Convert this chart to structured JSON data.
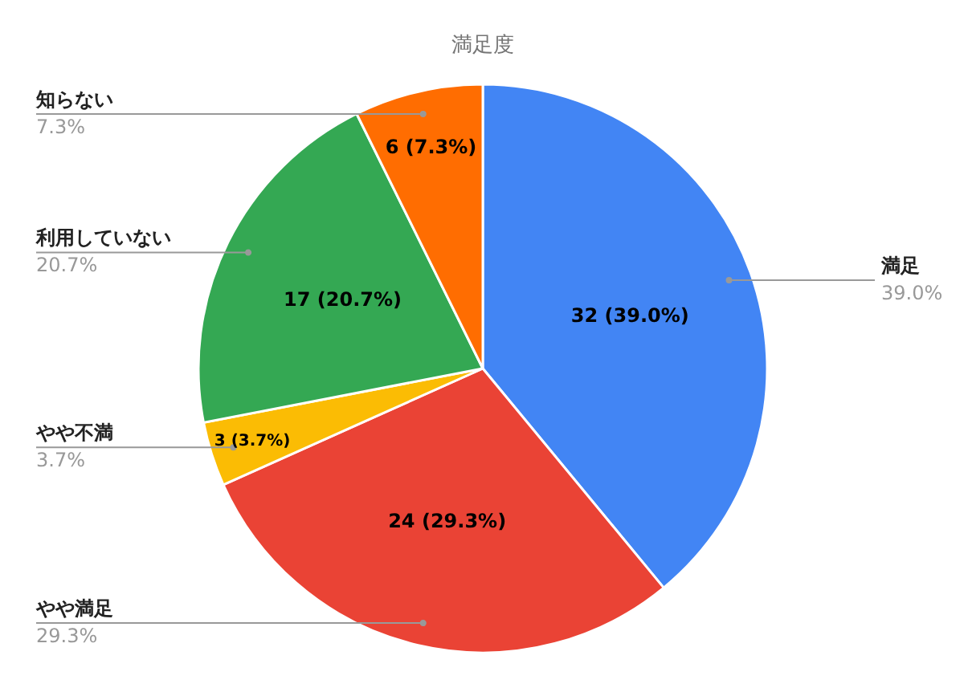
{
  "chart_data": {
    "type": "pie",
    "title": "満足度",
    "categories": [
      "満足",
      "やや満足",
      "やや不満",
      "利用していない",
      "知らない"
    ],
    "values": [
      32,
      24,
      3,
      17,
      6
    ],
    "colors": [
      "#4285f4",
      "#ea4335",
      "#fbbc04",
      "#34a853",
      "#ff6d01"
    ],
    "value_labels": [
      "32 (39.0%)",
      "24 (29.3%)",
      "3 (3.7%)",
      "17 (20.7%)",
      "6 (7.3%)"
    ],
    "annotations": [
      "39.0%",
      "29.3%",
      "3.7%",
      "20.7%",
      "7.3%"
    ]
  }
}
